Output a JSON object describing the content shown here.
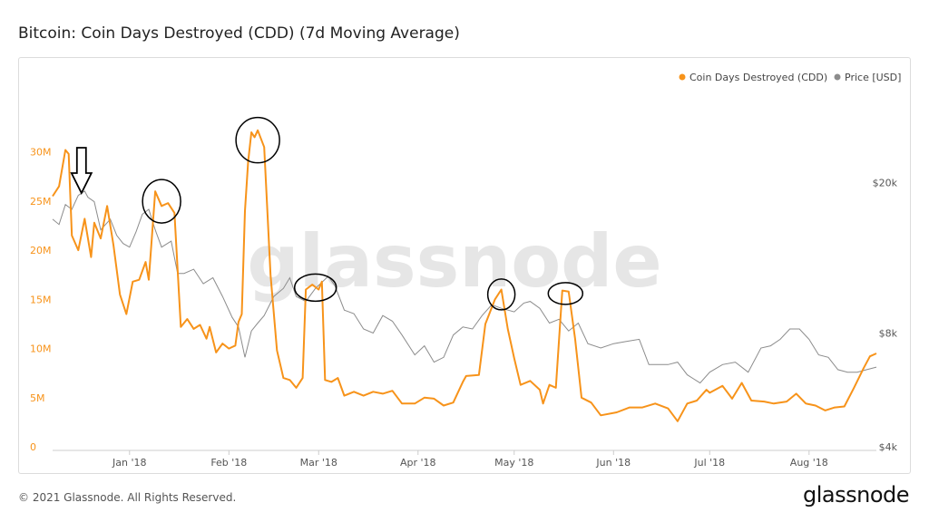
{
  "title": "Bitcoin: Coin Days Destroyed (CDD) (7d Moving Average)",
  "footer": "© 2021 Glassnode. All Rights Reserved.",
  "logo_text": "glassnode",
  "watermark_text": "glassnode",
  "colors": {
    "cdd": "#f7931a",
    "price": "#8c8c8c",
    "annotation": "#000000"
  },
  "chart_data": {
    "type": "line",
    "title": "Bitcoin: Coin Days Destroyed (CDD) (7d Moving Average)",
    "legend_position": "top-right",
    "grid": false,
    "x_range": [
      "2017-12-08",
      "2018-08-22"
    ],
    "x_ticks": [
      {
        "date": "2018-01-01",
        "label": "Jan '18"
      },
      {
        "date": "2018-02-01",
        "label": "Feb '18"
      },
      {
        "date": "2018-03-01",
        "label": "Mar '18"
      },
      {
        "date": "2018-04-01",
        "label": "Apr '18"
      },
      {
        "date": "2018-05-01",
        "label": "May '18"
      },
      {
        "date": "2018-06-01",
        "label": "Jun '18"
      },
      {
        "date": "2018-07-01",
        "label": "Jul '18"
      },
      {
        "date": "2018-08-01",
        "label": "Aug '18"
      }
    ],
    "y_left": {
      "ylim": [
        0,
        32000000
      ],
      "ticks": [
        {
          "value": 0,
          "label": "0"
        },
        {
          "value": 5000000,
          "label": "5M"
        },
        {
          "value": 10000000,
          "label": "10M"
        },
        {
          "value": 15000000,
          "label": "15M"
        },
        {
          "value": 20000000,
          "label": "20M"
        },
        {
          "value": 25000000,
          "label": "25M"
        },
        {
          "value": 30000000,
          "label": "30M"
        }
      ]
    },
    "y_right": {
      "scale": "log",
      "ylim": [
        4000,
        26000
      ],
      "ticks": [
        {
          "value": 4000,
          "label": "$4k"
        },
        {
          "value": 8000,
          "label": "$8k"
        },
        {
          "value": 20000,
          "label": "$20k"
        }
      ]
    },
    "series": [
      {
        "name": "Coin Days Destroyed (CDD)",
        "axis": "left",
        "points": [
          [
            "2017-12-08",
            25500000
          ],
          [
            "2017-12-10",
            26500000
          ],
          [
            "2017-12-12",
            30200000
          ],
          [
            "2017-12-13",
            29800000
          ],
          [
            "2017-12-14",
            21500000
          ],
          [
            "2017-12-16",
            20000000
          ],
          [
            "2017-12-18",
            23200000
          ],
          [
            "2017-12-20",
            19300000
          ],
          [
            "2017-12-21",
            22800000
          ],
          [
            "2017-12-23",
            21200000
          ],
          [
            "2017-12-25",
            24500000
          ],
          [
            "2017-12-27",
            20500000
          ],
          [
            "2017-12-29",
            15500000
          ],
          [
            "2017-12-31",
            13500000
          ],
          [
            "2018-01-02",
            16800000
          ],
          [
            "2018-01-04",
            17000000
          ],
          [
            "2018-01-06",
            18800000
          ],
          [
            "2018-01-07",
            17000000
          ],
          [
            "2018-01-09",
            26000000
          ],
          [
            "2018-01-11",
            24500000
          ],
          [
            "2018-01-13",
            24800000
          ],
          [
            "2018-01-15",
            23800000
          ],
          [
            "2018-01-17",
            12200000
          ],
          [
            "2018-01-19",
            13000000
          ],
          [
            "2018-01-21",
            12000000
          ],
          [
            "2018-01-23",
            12400000
          ],
          [
            "2018-01-25",
            11000000
          ],
          [
            "2018-01-26",
            12200000
          ],
          [
            "2018-01-28",
            9600000
          ],
          [
            "2018-01-30",
            10500000
          ],
          [
            "2018-02-01",
            10000000
          ],
          [
            "2018-02-03",
            10300000
          ],
          [
            "2018-02-04",
            12700000
          ],
          [
            "2018-02-05",
            13500000
          ],
          [
            "2018-02-06",
            24000000
          ],
          [
            "2018-02-07",
            29000000
          ],
          [
            "2018-02-08",
            32000000
          ],
          [
            "2018-02-09",
            31500000
          ],
          [
            "2018-02-10",
            32200000
          ],
          [
            "2018-02-12",
            30500000
          ],
          [
            "2018-02-14",
            17500000
          ],
          [
            "2018-02-16",
            9800000
          ],
          [
            "2018-02-18",
            7000000
          ],
          [
            "2018-02-20",
            6800000
          ],
          [
            "2018-02-22",
            6000000
          ],
          [
            "2018-02-24",
            7000000
          ],
          [
            "2018-02-25",
            16000000
          ],
          [
            "2018-02-27",
            16500000
          ],
          [
            "2018-03-01",
            16000000
          ],
          [
            "2018-03-02",
            16800000
          ],
          [
            "2018-03-03",
            6800000
          ],
          [
            "2018-03-05",
            6600000
          ],
          [
            "2018-03-07",
            7000000
          ],
          [
            "2018-03-09",
            5200000
          ],
          [
            "2018-03-12",
            5600000
          ],
          [
            "2018-03-15",
            5200000
          ],
          [
            "2018-03-18",
            5600000
          ],
          [
            "2018-03-21",
            5400000
          ],
          [
            "2018-03-24",
            5700000
          ],
          [
            "2018-03-27",
            4400000
          ],
          [
            "2018-03-31",
            4400000
          ],
          [
            "2018-04-03",
            5000000
          ],
          [
            "2018-04-06",
            4900000
          ],
          [
            "2018-04-09",
            4200000
          ],
          [
            "2018-04-12",
            4500000
          ],
          [
            "2018-04-15",
            6600000
          ],
          [
            "2018-04-16",
            7200000
          ],
          [
            "2018-04-20",
            7300000
          ],
          [
            "2018-04-22",
            12500000
          ],
          [
            "2018-04-25",
            15000000
          ],
          [
            "2018-04-27",
            16000000
          ],
          [
            "2018-04-29",
            12000000
          ],
          [
            "2018-05-01",
            9000000
          ],
          [
            "2018-05-03",
            6300000
          ],
          [
            "2018-05-06",
            6700000
          ],
          [
            "2018-05-09",
            5800000
          ],
          [
            "2018-05-10",
            4400000
          ],
          [
            "2018-05-12",
            6300000
          ],
          [
            "2018-05-14",
            6000000
          ],
          [
            "2018-05-16",
            15900000
          ],
          [
            "2018-05-18",
            15800000
          ],
          [
            "2018-05-20",
            11000000
          ],
          [
            "2018-05-22",
            5000000
          ],
          [
            "2018-05-25",
            4500000
          ],
          [
            "2018-05-28",
            3200000
          ],
          [
            "2018-06-02",
            3500000
          ],
          [
            "2018-06-06",
            4000000
          ],
          [
            "2018-06-10",
            4000000
          ],
          [
            "2018-06-14",
            4400000
          ],
          [
            "2018-06-18",
            3900000
          ],
          [
            "2018-06-21",
            2600000
          ],
          [
            "2018-06-24",
            4400000
          ],
          [
            "2018-06-27",
            4700000
          ],
          [
            "2018-06-30",
            5800000
          ],
          [
            "2018-07-01",
            5500000
          ],
          [
            "2018-07-05",
            6200000
          ],
          [
            "2018-07-08",
            4900000
          ],
          [
            "2018-07-11",
            6500000
          ],
          [
            "2018-07-14",
            4700000
          ],
          [
            "2018-07-18",
            4600000
          ],
          [
            "2018-07-21",
            4400000
          ],
          [
            "2018-07-25",
            4600000
          ],
          [
            "2018-07-28",
            5400000
          ],
          [
            "2018-07-31",
            4400000
          ],
          [
            "2018-08-03",
            4200000
          ],
          [
            "2018-08-06",
            3700000
          ],
          [
            "2018-08-09",
            4000000
          ],
          [
            "2018-08-12",
            4100000
          ],
          [
            "2018-08-15",
            6000000
          ],
          [
            "2018-08-18",
            8000000
          ],
          [
            "2018-08-20",
            9200000
          ],
          [
            "2018-08-22",
            9500000
          ]
        ]
      },
      {
        "name": "Price [USD]",
        "axis": "right",
        "points": [
          [
            "2017-12-08",
            16000
          ],
          [
            "2017-12-10",
            15500
          ],
          [
            "2017-12-12",
            17500
          ],
          [
            "2017-12-14",
            17000
          ],
          [
            "2017-12-16",
            18500
          ],
          [
            "2017-12-18",
            19000
          ],
          [
            "2017-12-19",
            18300
          ],
          [
            "2017-12-21",
            17800
          ],
          [
            "2017-12-23",
            15000
          ],
          [
            "2017-12-26",
            16000
          ],
          [
            "2017-12-28",
            14500
          ],
          [
            "2017-12-30",
            13800
          ],
          [
            "2018-01-01",
            13500
          ],
          [
            "2018-01-03",
            14800
          ],
          [
            "2018-01-05",
            16500
          ],
          [
            "2018-01-07",
            17000
          ],
          [
            "2018-01-09",
            15000
          ],
          [
            "2018-01-11",
            13500
          ],
          [
            "2018-01-14",
            14000
          ],
          [
            "2018-01-16",
            11500
          ],
          [
            "2018-01-18",
            11500
          ],
          [
            "2018-01-21",
            11800
          ],
          [
            "2018-01-24",
            10800
          ],
          [
            "2018-01-27",
            11200
          ],
          [
            "2018-01-30",
            10000
          ],
          [
            "2018-02-02",
            8800
          ],
          [
            "2018-02-04",
            8300
          ],
          [
            "2018-02-06",
            6900
          ],
          [
            "2018-02-08",
            8100
          ],
          [
            "2018-02-10",
            8500
          ],
          [
            "2018-02-12",
            8900
          ],
          [
            "2018-02-15",
            10000
          ],
          [
            "2018-02-18",
            10500
          ],
          [
            "2018-02-20",
            11200
          ],
          [
            "2018-02-22",
            10000
          ],
          [
            "2018-02-25",
            9700
          ],
          [
            "2018-02-28",
            10500
          ],
          [
            "2018-03-04",
            11300
          ],
          [
            "2018-03-06",
            10700
          ],
          [
            "2018-03-09",
            9200
          ],
          [
            "2018-03-12",
            9000
          ],
          [
            "2018-03-15",
            8200
          ],
          [
            "2018-03-18",
            8000
          ],
          [
            "2018-03-21",
            8900
          ],
          [
            "2018-03-24",
            8600
          ],
          [
            "2018-03-27",
            7900
          ],
          [
            "2018-03-31",
            7000
          ],
          [
            "2018-04-03",
            7400
          ],
          [
            "2018-04-06",
            6700
          ],
          [
            "2018-04-09",
            6900
          ],
          [
            "2018-04-12",
            7900
          ],
          [
            "2018-04-15",
            8300
          ],
          [
            "2018-04-18",
            8200
          ],
          [
            "2018-04-21",
            8900
          ],
          [
            "2018-04-24",
            9500
          ],
          [
            "2018-04-27",
            9300
          ],
          [
            "2018-05-01",
            9100
          ],
          [
            "2018-05-04",
            9600
          ],
          [
            "2018-05-06",
            9700
          ],
          [
            "2018-05-09",
            9300
          ],
          [
            "2018-05-12",
            8500
          ],
          [
            "2018-05-15",
            8700
          ],
          [
            "2018-05-18",
            8100
          ],
          [
            "2018-05-21",
            8500
          ],
          [
            "2018-05-24",
            7500
          ],
          [
            "2018-05-28",
            7300
          ],
          [
            "2018-06-01",
            7500
          ],
          [
            "2018-06-05",
            7600
          ],
          [
            "2018-06-09",
            7700
          ],
          [
            "2018-06-12",
            6600
          ],
          [
            "2018-06-15",
            6600
          ],
          [
            "2018-06-18",
            6600
          ],
          [
            "2018-06-21",
            6700
          ],
          [
            "2018-06-24",
            6200
          ],
          [
            "2018-06-28",
            5900
          ],
          [
            "2018-07-01",
            6300
          ],
          [
            "2018-07-05",
            6600
          ],
          [
            "2018-07-09",
            6700
          ],
          [
            "2018-07-13",
            6300
          ],
          [
            "2018-07-17",
            7300
          ],
          [
            "2018-07-20",
            7400
          ],
          [
            "2018-07-23",
            7700
          ],
          [
            "2018-07-26",
            8200
          ],
          [
            "2018-07-29",
            8200
          ],
          [
            "2018-08-01",
            7700
          ],
          [
            "2018-08-04",
            7000
          ],
          [
            "2018-08-07",
            6900
          ],
          [
            "2018-08-10",
            6400
          ],
          [
            "2018-08-13",
            6300
          ],
          [
            "2018-08-16",
            6300
          ],
          [
            "2018-08-19",
            6400
          ],
          [
            "2018-08-22",
            6500
          ]
        ]
      }
    ]
  }
}
